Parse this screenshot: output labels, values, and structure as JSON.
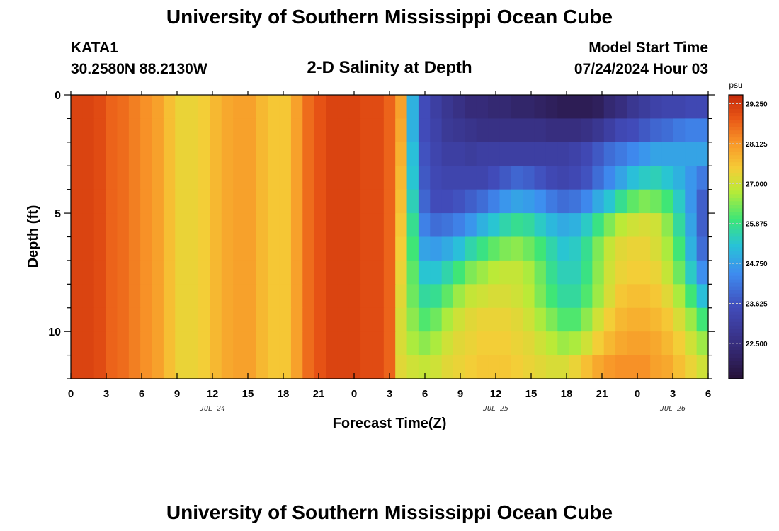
{
  "header": {
    "title": "University of Southern Mississippi Ocean Cube",
    "station_id": "KATA1",
    "coords": "30.2580N  88.2130W",
    "plot_title": "2-D Salinity at Depth",
    "model_label": "Model Start Time",
    "model_time": "07/24/2024 Hour 03"
  },
  "footer": {
    "title": "University of Southern Mississippi Ocean Cube"
  },
  "chart_data": {
    "type": "heatmap",
    "title": "2-D Salinity at Depth",
    "xlabel": "Forecast Time(Z)",
    "ylabel": "Depth (ft)",
    "x_range_hours": [
      0,
      54
    ],
    "y_range_ft": [
      0,
      12
    ],
    "x_tick_labels": [
      "0",
      "3",
      "6",
      "9",
      "12",
      "15",
      "18",
      "21",
      "0",
      "3",
      "6",
      "9",
      "12",
      "15",
      "18",
      "21",
      "0",
      "3",
      "6"
    ],
    "y_ticks": [
      0,
      5,
      10
    ],
    "date_labels": [
      {
        "label": "JUL 24",
        "hour": 12
      },
      {
        "label": "JUL 25",
        "hour": 36
      },
      {
        "label": "JUL 26",
        "hour": 51
      }
    ],
    "colorbar": {
      "unit": "psu",
      "ticks": [
        "29.250",
        "28.125",
        "27.000",
        "25.875",
        "24.750",
        "23.625",
        "22.500"
      ],
      "min": 21.5,
      "max": 29.5
    },
    "depths_ft": [
      0.5,
      1.5,
      2.5,
      3.5,
      4.5,
      5.5,
      6.5,
      7.5,
      8.5,
      9.5,
      10.5,
      11.5
    ],
    "hours": [
      0,
      1,
      2,
      3,
      4,
      5,
      6,
      7,
      8,
      9,
      10,
      11,
      12,
      13,
      14,
      15,
      16,
      17,
      18,
      19,
      20,
      21,
      22,
      23,
      24,
      25,
      26,
      27,
      28,
      29,
      30,
      31,
      32,
      33,
      34,
      35,
      36,
      37,
      38,
      39,
      40,
      41,
      42,
      43,
      44,
      45,
      46,
      47,
      48,
      49,
      50,
      51,
      52,
      53,
      54
    ],
    "salinity_psu": [
      [
        29.1,
        29.1,
        29.0,
        28.7,
        28.6,
        28.4,
        28.2,
        28.0,
        27.6,
        27.3,
        27.3,
        27.4,
        27.7,
        27.9,
        28.0,
        28.0,
        27.7,
        27.5,
        27.5,
        28.0,
        28.6,
        28.9,
        29.1,
        29.1,
        29.1,
        29.0,
        29.0,
        28.7,
        28.0,
        25.0,
        23.5,
        23.1,
        22.8,
        22.6,
        22.4,
        22.4,
        22.3,
        22.3,
        22.2,
        22.2,
        22.1,
        22.0,
        21.9,
        21.9,
        21.9,
        22.0,
        22.3,
        22.5,
        22.8,
        23.0,
        23.2,
        23.3,
        23.3,
        23.4,
        23.4
      ],
      [
        29.1,
        29.1,
        29.0,
        28.7,
        28.6,
        28.4,
        28.2,
        28.0,
        27.6,
        27.3,
        27.3,
        27.4,
        27.7,
        27.9,
        28.0,
        28.0,
        27.7,
        27.5,
        27.5,
        28.0,
        28.6,
        28.9,
        29.1,
        29.1,
        29.1,
        29.0,
        29.0,
        28.7,
        27.9,
        25.0,
        23.5,
        23.2,
        22.9,
        22.8,
        22.7,
        22.6,
        22.6,
        22.6,
        22.6,
        22.6,
        22.6,
        22.5,
        22.5,
        22.5,
        22.6,
        22.8,
        23.1,
        23.4,
        23.5,
        23.7,
        23.9,
        24.0,
        24.2,
        24.3,
        24.3
      ],
      [
        29.1,
        29.1,
        29.0,
        28.7,
        28.6,
        28.4,
        28.2,
        28.0,
        27.6,
        27.3,
        27.3,
        27.4,
        27.7,
        27.9,
        28.0,
        28.0,
        27.7,
        27.5,
        27.5,
        28.0,
        28.6,
        28.9,
        29.1,
        29.1,
        29.1,
        29.0,
        29.0,
        28.7,
        27.8,
        25.2,
        23.6,
        23.3,
        23.1,
        23.1,
        23.0,
        23.1,
        23.1,
        23.1,
        23.1,
        23.1,
        23.1,
        23.1,
        23.1,
        23.2,
        23.4,
        23.7,
        24.0,
        24.2,
        24.4,
        24.6,
        24.8,
        24.8,
        24.8,
        24.8,
        24.8
      ],
      [
        29.1,
        29.1,
        29.0,
        28.7,
        28.6,
        28.4,
        28.2,
        28.0,
        27.6,
        27.3,
        27.3,
        27.4,
        27.7,
        27.9,
        28.0,
        28.0,
        27.7,
        27.5,
        27.5,
        28.0,
        28.6,
        28.9,
        29.1,
        29.1,
        29.1,
        29.0,
        29.0,
        28.7,
        27.7,
        25.3,
        23.7,
        23.4,
        23.3,
        23.3,
        23.3,
        23.3,
        23.5,
        23.7,
        23.9,
        23.8,
        23.6,
        23.4,
        23.3,
        23.4,
        23.6,
        24.0,
        24.4,
        24.8,
        25.2,
        25.4,
        25.5,
        25.3,
        25.0,
        24.6,
        24.2
      ],
      [
        29.1,
        29.1,
        29.0,
        28.7,
        28.6,
        28.4,
        28.2,
        28.0,
        27.6,
        27.3,
        27.3,
        27.4,
        27.7,
        27.9,
        28.0,
        28.0,
        27.7,
        27.5,
        27.5,
        28.0,
        28.6,
        28.9,
        29.1,
        29.1,
        29.1,
        29.0,
        29.0,
        28.7,
        27.6,
        25.5,
        23.9,
        23.5,
        23.5,
        23.6,
        23.8,
        24.0,
        24.3,
        24.6,
        24.8,
        24.7,
        24.5,
        24.2,
        24.0,
        24.1,
        24.4,
        24.9,
        25.3,
        25.8,
        26.2,
        26.4,
        26.3,
        26.0,
        25.4,
        24.6,
        23.8
      ],
      [
        29.1,
        29.1,
        29.0,
        28.7,
        28.6,
        28.4,
        28.2,
        28.0,
        27.6,
        27.3,
        27.3,
        27.4,
        27.7,
        27.9,
        28.0,
        28.0,
        27.7,
        27.5,
        27.5,
        28.0,
        28.6,
        28.9,
        29.1,
        29.1,
        29.1,
        29.0,
        29.0,
        28.7,
        27.5,
        25.8,
        24.3,
        24.0,
        24.1,
        24.3,
        24.6,
        25.0,
        25.3,
        25.6,
        25.8,
        25.7,
        25.4,
        25.1,
        24.9,
        25.0,
        25.4,
        25.9,
        26.4,
        26.8,
        27.0,
        27.1,
        27.0,
        26.5,
        25.7,
        24.8,
        23.8
      ],
      [
        29.1,
        29.1,
        29.0,
        28.7,
        28.6,
        28.4,
        28.2,
        28.0,
        27.6,
        27.3,
        27.3,
        27.4,
        27.7,
        27.9,
        28.0,
        28.0,
        27.7,
        27.5,
        27.5,
        28.0,
        28.6,
        28.9,
        29.1,
        29.1,
        29.1,
        29.0,
        29.0,
        28.7,
        27.4,
        26.0,
        24.8,
        24.7,
        24.9,
        25.2,
        25.6,
        25.9,
        26.2,
        26.4,
        26.5,
        26.3,
        26.0,
        25.6,
        25.3,
        25.4,
        25.8,
        26.4,
        26.9,
        27.2,
        27.3,
        27.3,
        27.1,
        26.7,
        26.0,
        25.0,
        24.0
      ],
      [
        29.1,
        29.1,
        29.0,
        28.7,
        28.6,
        28.4,
        28.2,
        28.0,
        27.6,
        27.3,
        27.3,
        27.4,
        27.7,
        27.9,
        28.0,
        28.0,
        27.7,
        27.5,
        27.5,
        28.0,
        28.6,
        28.9,
        29.1,
        29.1,
        29.1,
        29.0,
        29.0,
        28.7,
        27.3,
        26.2,
        25.3,
        25.3,
        25.6,
        26.0,
        26.4,
        26.6,
        26.8,
        26.9,
        26.9,
        26.7,
        26.3,
        25.8,
        25.5,
        25.5,
        25.9,
        26.5,
        27.0,
        27.3,
        27.4,
        27.4,
        27.3,
        26.9,
        26.3,
        25.4,
        24.5
      ],
      [
        29.1,
        29.1,
        29.0,
        28.7,
        28.6,
        28.4,
        28.2,
        28.0,
        27.6,
        27.3,
        27.3,
        27.4,
        27.7,
        27.9,
        28.0,
        28.0,
        27.7,
        27.5,
        27.5,
        28.0,
        28.6,
        28.9,
        29.1,
        29.1,
        29.1,
        29.0,
        29.0,
        28.7,
        27.2,
        26.3,
        25.7,
        25.8,
        26.2,
        26.6,
        26.9,
        27.0,
        27.1,
        27.1,
        27.0,
        26.8,
        26.4,
        26.0,
        25.7,
        25.7,
        26.1,
        26.6,
        27.1,
        27.5,
        27.6,
        27.6,
        27.5,
        27.2,
        26.7,
        26.0,
        25.2
      ],
      [
        29.1,
        29.1,
        29.0,
        28.7,
        28.6,
        28.4,
        28.2,
        28.0,
        27.6,
        27.3,
        27.3,
        27.4,
        27.7,
        27.9,
        28.0,
        28.0,
        27.7,
        27.5,
        27.5,
        28.0,
        28.6,
        28.9,
        29.1,
        29.1,
        29.1,
        29.0,
        29.0,
        28.7,
        27.1,
        26.5,
        26.1,
        26.3,
        26.7,
        27.0,
        27.2,
        27.3,
        27.3,
        27.3,
        27.2,
        27.0,
        26.7,
        26.4,
        26.1,
        26.1,
        26.5,
        27.0,
        27.4,
        27.7,
        27.8,
        27.8,
        27.7,
        27.5,
        27.1,
        26.6,
        26.0
      ],
      [
        29.1,
        29.1,
        29.0,
        28.7,
        28.6,
        28.4,
        28.2,
        28.0,
        27.6,
        27.3,
        27.3,
        27.4,
        27.7,
        27.9,
        28.0,
        28.0,
        27.7,
        27.5,
        27.5,
        28.0,
        28.6,
        28.9,
        29.1,
        29.1,
        29.1,
        29.0,
        29.0,
        28.7,
        27.1,
        26.7,
        26.5,
        26.7,
        27.0,
        27.2,
        27.3,
        27.4,
        27.4,
        27.4,
        27.3,
        27.2,
        27.0,
        26.8,
        26.6,
        26.7,
        27.0,
        27.4,
        27.7,
        27.9,
        28.0,
        28.0,
        27.9,
        27.7,
        27.4,
        27.0,
        26.6
      ],
      [
        29.1,
        29.1,
        29.0,
        28.7,
        28.6,
        28.4,
        28.2,
        28.0,
        27.6,
        27.3,
        27.3,
        27.4,
        27.7,
        27.9,
        28.0,
        28.0,
        27.7,
        27.5,
        27.5,
        28.0,
        28.6,
        28.9,
        29.1,
        29.1,
        29.1,
        29.0,
        29.0,
        28.7,
        27.2,
        27.0,
        26.9,
        27.0,
        27.2,
        27.3,
        27.4,
        27.5,
        27.5,
        27.5,
        27.4,
        27.3,
        27.2,
        27.1,
        27.1,
        27.3,
        27.6,
        27.9,
        28.1,
        28.2,
        28.2,
        28.2,
        28.0,
        27.9,
        27.6,
        27.3,
        27.0
      ]
    ]
  }
}
